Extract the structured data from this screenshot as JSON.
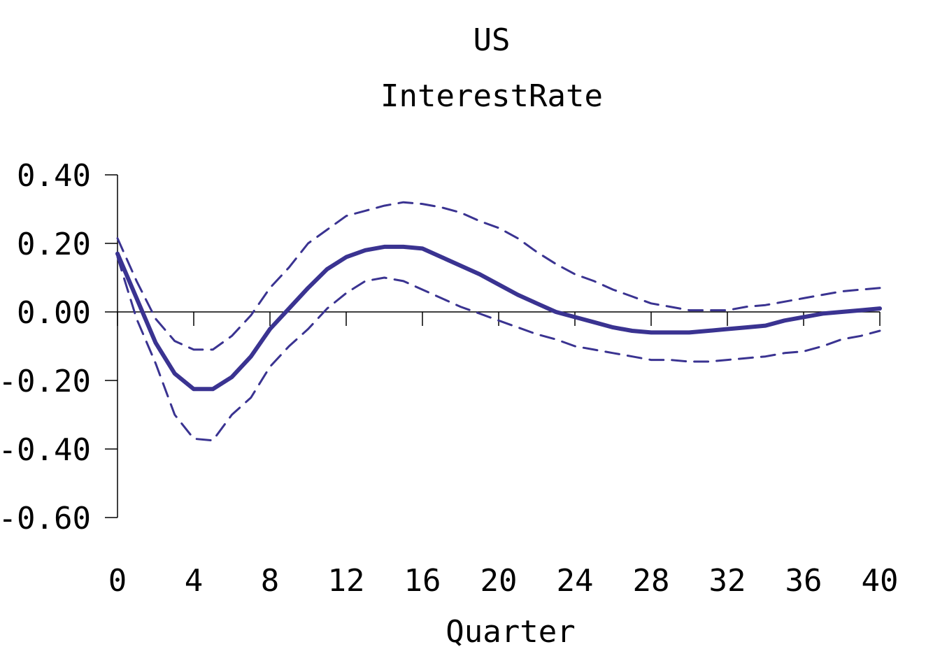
{
  "chart_data": {
    "type": "line",
    "title": "US",
    "subtitle": "InterestRate",
    "xlabel": "Quarter",
    "ylabel": "",
    "xlim": [
      0,
      40
    ],
    "ylim": [
      -0.6,
      0.4
    ],
    "x_ticks": [
      0,
      4,
      8,
      12,
      16,
      20,
      24,
      28,
      32,
      36,
      40
    ],
    "y_ticks": [
      0.4,
      0.2,
      0.0,
      -0.2,
      -0.4,
      -0.6
    ],
    "x_tick_labels": [
      "0",
      "4",
      "8",
      "12",
      "16",
      "20",
      "24",
      "28",
      "32",
      "36",
      "40"
    ],
    "y_tick_labels": [
      "0.40",
      "0.20",
      "0.00",
      "-0.20",
      "-0.40",
      "-0.60"
    ],
    "grid": false,
    "legend": "none",
    "x": [
      0,
      1,
      2,
      3,
      4,
      5,
      6,
      7,
      8,
      9,
      10,
      11,
      12,
      13,
      14,
      15,
      16,
      17,
      18,
      19,
      20,
      21,
      22,
      23,
      24,
      25,
      26,
      27,
      28,
      29,
      30,
      31,
      32,
      33,
      34,
      35,
      36,
      37,
      38,
      39,
      40
    ],
    "series": [
      {
        "style": "solid",
        "color": "#3a3391",
        "values": [
          0.17,
          0.04,
          -0.09,
          -0.18,
          -0.225,
          -0.225,
          -0.19,
          -0.13,
          -0.05,
          0.01,
          0.07,
          0.125,
          0.16,
          0.18,
          0.19,
          0.19,
          0.185,
          0.16,
          0.135,
          0.11,
          0.08,
          0.05,
          0.025,
          0.0,
          -0.015,
          -0.03,
          -0.045,
          -0.055,
          -0.06,
          -0.06,
          -0.06,
          -0.055,
          -0.05,
          -0.045,
          -0.04,
          -0.025,
          -0.015,
          -0.005,
          0.0,
          0.005,
          0.01
        ]
      },
      {
        "style": "dashed",
        "color": "#3a3391",
        "values": [
          0.215,
          0.09,
          -0.02,
          -0.085,
          -0.11,
          -0.11,
          -0.07,
          -0.01,
          0.07,
          0.13,
          0.2,
          0.24,
          0.28,
          0.295,
          0.31,
          0.32,
          0.315,
          0.305,
          0.29,
          0.265,
          0.245,
          0.215,
          0.175,
          0.14,
          0.11,
          0.09,
          0.065,
          0.045,
          0.025,
          0.015,
          0.005,
          0.005,
          0.005,
          0.015,
          0.02,
          0.03,
          0.04,
          0.05,
          0.06,
          0.065,
          0.07
        ]
      },
      {
        "style": "dashed",
        "color": "#3a3391",
        "values": [
          0.16,
          -0.02,
          -0.15,
          -0.3,
          -0.37,
          -0.375,
          -0.3,
          -0.25,
          -0.16,
          -0.1,
          -0.05,
          0.01,
          0.055,
          0.09,
          0.1,
          0.09,
          0.065,
          0.04,
          0.015,
          -0.005,
          -0.025,
          -0.045,
          -0.065,
          -0.08,
          -0.1,
          -0.11,
          -0.12,
          -0.13,
          -0.14,
          -0.14,
          -0.145,
          -0.145,
          -0.14,
          -0.135,
          -0.13,
          -0.12,
          -0.115,
          -0.1,
          -0.08,
          -0.07,
          -0.055
        ]
      }
    ]
  }
}
